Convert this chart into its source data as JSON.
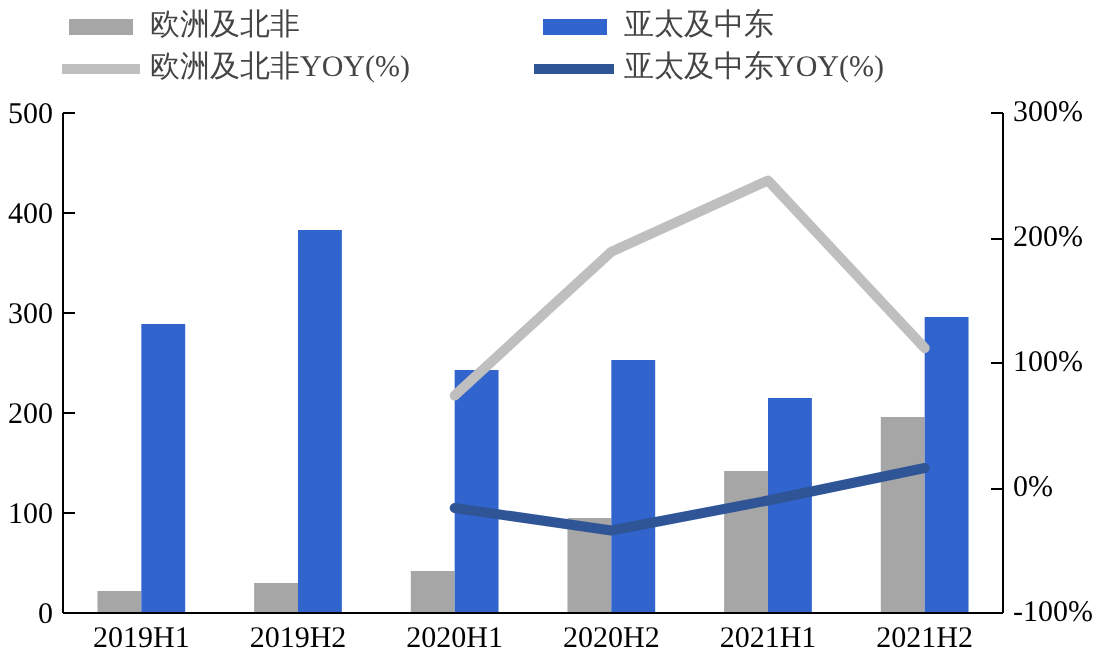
{
  "chart_data": {
    "type": "bar",
    "categories": [
      "2019H1",
      "2019H2",
      "2020H1",
      "2020H2",
      "2021H1",
      "2021H2"
    ],
    "series": [
      {
        "name": "欧洲及北非",
        "color": "#a6a6a6",
        "values": [
          22,
          30,
          42,
          95,
          142,
          196
        ]
      },
      {
        "name": "亚太及中东",
        "color": "#3164cc",
        "values": [
          289,
          383,
          243,
          253,
          215,
          296
        ]
      },
      {
        "name": "欧洲及北非YOY(%)",
        "type": "line",
        "axis": "y2",
        "color": "#bfbfbf",
        "values": [
          null,
          null,
          74,
          189,
          246,
          112
        ]
      },
      {
        "name": "亚太及中东YOY(%)",
        "type": "line",
        "axis": "y2",
        "color": "#2f5597",
        "values": [
          null,
          null,
          -16,
          -34,
          -10,
          16
        ]
      }
    ],
    "ylim": [
      0,
      500
    ],
    "yticks": [
      0,
      100,
      200,
      300,
      400,
      500
    ],
    "y2lim": [
      -100,
      300
    ],
    "y2ticks": [
      {
        "value": -100,
        "label": "-100%"
      },
      {
        "value": 0,
        "label": "0%"
      },
      {
        "value": 100,
        "label": "100%"
      },
      {
        "value": 200,
        "label": "200%"
      },
      {
        "value": 300,
        "label": "300%"
      }
    ],
    "legend": "top",
    "grid": false
  }
}
